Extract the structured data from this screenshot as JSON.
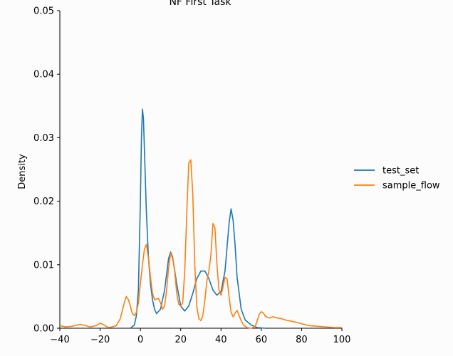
{
  "chart_data": {
    "type": "line",
    "title": "NF First Task",
    "xlabel": "",
    "ylabel": "Density",
    "xlim": [
      -40,
      100
    ],
    "ylim": [
      0,
      0.05
    ],
    "x_ticks": [
      -40,
      -20,
      0,
      20,
      40,
      60,
      80,
      100
    ],
    "x_tick_labels": [
      "−40",
      "−20",
      "0",
      "20",
      "40",
      "60",
      "80",
      "100"
    ],
    "y_ticks": [
      0,
      0.01,
      0.02,
      0.03,
      0.04,
      0.05
    ],
    "y_tick_labels": [
      "0.00",
      "0.01",
      "0.02",
      "0.03",
      "0.04",
      "0.05"
    ],
    "grid": false,
    "legend_placement": "right",
    "series": [
      {
        "name": "test_set",
        "color": "#1f77b4",
        "points": [
          [
            -5,
            0
          ],
          [
            -3,
            0.0005
          ],
          [
            -2,
            0.002
          ],
          [
            -1,
            0.006
          ],
          [
            0,
            0.02
          ],
          [
            0.5,
            0.03
          ],
          [
            1,
            0.0345
          ],
          [
            1.5,
            0.033
          ],
          [
            2,
            0.028
          ],
          [
            3,
            0.018
          ],
          [
            4,
            0.011
          ],
          [
            5,
            0.007
          ],
          [
            6,
            0.0045
          ],
          [
            7,
            0.003
          ],
          [
            8,
            0.0023
          ],
          [
            10,
            0.003
          ],
          [
            12,
            0.006
          ],
          [
            14,
            0.011
          ],
          [
            15,
            0.012
          ],
          [
            16,
            0.0112
          ],
          [
            18,
            0.007
          ],
          [
            20,
            0.0035
          ],
          [
            22,
            0.0027
          ],
          [
            24,
            0.0035
          ],
          [
            26,
            0.0055
          ],
          [
            28,
            0.0078
          ],
          [
            30,
            0.009
          ],
          [
            32,
            0.009
          ],
          [
            34,
            0.0078
          ],
          [
            36,
            0.006
          ],
          [
            38,
            0.0052
          ],
          [
            40,
            0.0058
          ],
          [
            42,
            0.009
          ],
          [
            44,
            0.0165
          ],
          [
            45,
            0.0188
          ],
          [
            46,
            0.017
          ],
          [
            47,
            0.013
          ],
          [
            48,
            0.008
          ],
          [
            50,
            0.003
          ],
          [
            52,
            0.0013
          ],
          [
            55,
            0.0005
          ],
          [
            58,
            0.0001
          ],
          [
            62,
            0
          ]
        ]
      },
      {
        "name": "sample_flow",
        "color": "#ff7f0e",
        "points": [
          [
            -40,
            0.0004
          ],
          [
            -37,
            0.0002
          ],
          [
            -34,
            0.0003
          ],
          [
            -30,
            0.0006
          ],
          [
            -27,
            0.0004
          ],
          [
            -25,
            0.0002
          ],
          [
            -22,
            0.0004
          ],
          [
            -20,
            0.0008
          ],
          [
            -18,
            0.0005
          ],
          [
            -16,
            0.0001
          ],
          [
            -14,
            0.0002
          ],
          [
            -12,
            0.0004
          ],
          [
            -10,
            0.0015
          ],
          [
            -8,
            0.004
          ],
          [
            -7,
            0.005
          ],
          [
            -6,
            0.0045
          ],
          [
            -5,
            0.0035
          ],
          [
            -4,
            0.0023
          ],
          [
            -3,
            0.002
          ],
          [
            -2,
            0.0025
          ],
          [
            -1,
            0.004
          ],
          [
            0,
            0.007
          ],
          [
            1,
            0.01
          ],
          [
            2,
            0.0125
          ],
          [
            3,
            0.0132
          ],
          [
            4,
            0.011
          ],
          [
            5,
            0.008
          ],
          [
            6,
            0.0055
          ],
          [
            7,
            0.0045
          ],
          [
            8,
            0.0046
          ],
          [
            9,
            0.0047
          ],
          [
            10,
            0.004
          ],
          [
            11,
            0.003
          ],
          [
            12,
            0.0035
          ],
          [
            13,
            0.006
          ],
          [
            14,
            0.0095
          ],
          [
            15,
            0.0118
          ],
          [
            16,
            0.011
          ],
          [
            17,
            0.009
          ],
          [
            18,
            0.0055
          ],
          [
            19,
            0.0038
          ],
          [
            20,
            0.0035
          ],
          [
            21,
            0.004
          ],
          [
            22,
            0.009
          ],
          [
            23,
            0.018
          ],
          [
            24,
            0.026
          ],
          [
            25,
            0.0265
          ],
          [
            26,
            0.021
          ],
          [
            27,
            0.01
          ],
          [
            28,
            0.0035
          ],
          [
            29,
            0.0015
          ],
          [
            30,
            0.0012
          ],
          [
            31,
            0.002
          ],
          [
            32,
            0.0045
          ],
          [
            33,
            0.0075
          ],
          [
            34,
            0.009
          ],
          [
            35,
            0.0115
          ],
          [
            36,
            0.0165
          ],
          [
            37,
            0.0158
          ],
          [
            38,
            0.01
          ],
          [
            39,
            0.006
          ],
          [
            40,
            0.0052
          ],
          [
            41,
            0.0065
          ],
          [
            42,
            0.008
          ],
          [
            43,
            0.0078
          ],
          [
            44,
            0.005
          ],
          [
            45,
            0.0025
          ],
          [
            46,
            0.0018
          ],
          [
            47,
            0.0024
          ],
          [
            48,
            0.0028
          ],
          [
            49,
            0.002
          ],
          [
            50,
            0.0012
          ],
          [
            51,
            0.0006
          ],
          [
            52,
            0.0003
          ],
          [
            53,
            0.0001
          ],
          [
            55,
            0
          ],
          [
            57,
            0.0003
          ],
          [
            58,
            0.0012
          ],
          [
            59,
            0.0022
          ],
          [
            60,
            0.0026
          ],
          [
            61,
            0.0024
          ],
          [
            62,
            0.0019
          ],
          [
            64,
            0.0016
          ],
          [
            66,
            0.0018
          ],
          [
            68,
            0.0016
          ],
          [
            70,
            0.0015
          ],
          [
            72,
            0.0013
          ],
          [
            75,
            0.0011
          ],
          [
            78,
            0.0009
          ],
          [
            80,
            0.0007
          ],
          [
            84,
            0.0004
          ],
          [
            88,
            0.0003
          ],
          [
            92,
            0.0002
          ],
          [
            96,
            0.0001
          ],
          [
            100,
            0.0001
          ]
        ]
      }
    ]
  }
}
